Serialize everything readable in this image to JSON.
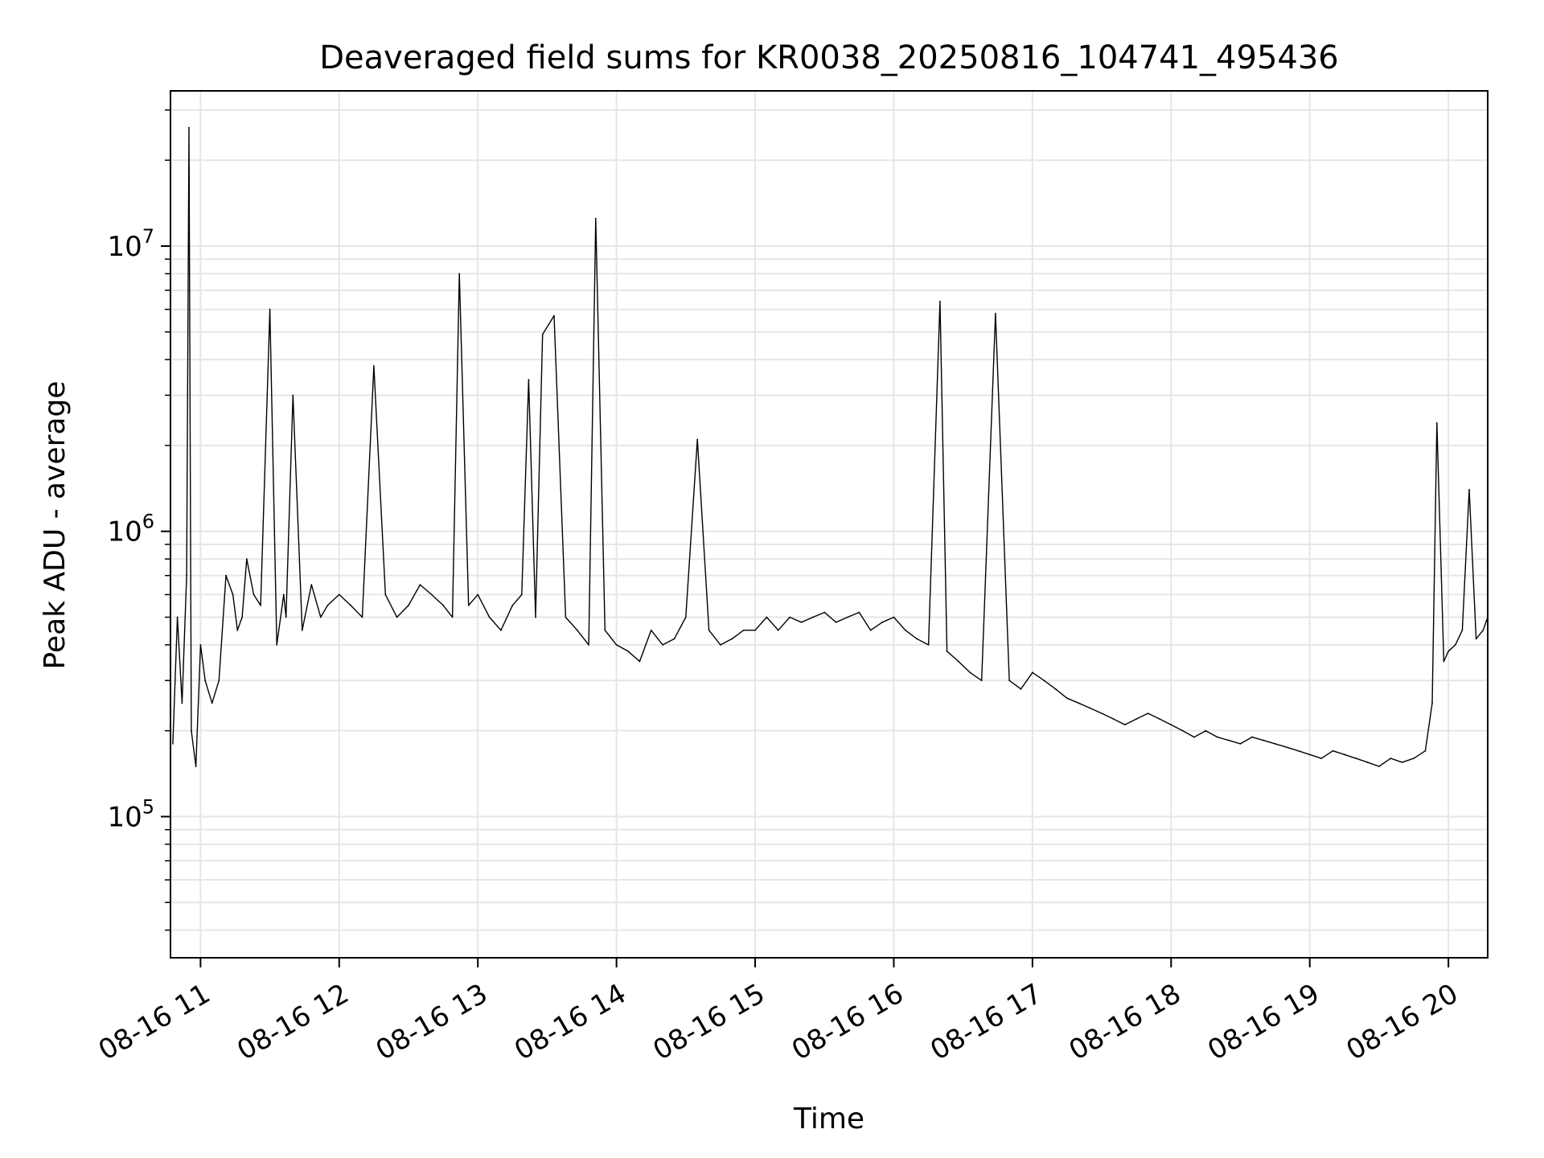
{
  "chart_data": {
    "type": "line",
    "title": "Deaveraged field sums for KR0038_20250816_104741_495436",
    "xlabel": "Time",
    "ylabel": "Peak ADU - average",
    "yscale": "log",
    "ylim": [
      32000,
      35000000
    ],
    "xlim": [
      "2025-08-16 10:47",
      "2025-08-16 20:17"
    ],
    "grid": true,
    "line_color": "#000000",
    "x_ticks": [
      {
        "value": "2025-08-16 11:00",
        "label": "08-16 11"
      },
      {
        "value": "2025-08-16 12:00",
        "label": "08-16 12"
      },
      {
        "value": "2025-08-16 13:00",
        "label": "08-16 13"
      },
      {
        "value": "2025-08-16 14:00",
        "label": "08-16 14"
      },
      {
        "value": "2025-08-16 15:00",
        "label": "08-16 15"
      },
      {
        "value": "2025-08-16 16:00",
        "label": "08-16 16"
      },
      {
        "value": "2025-08-16 17:00",
        "label": "08-16 17"
      },
      {
        "value": "2025-08-16 18:00",
        "label": "08-16 18"
      },
      {
        "value": "2025-08-16 19:00",
        "label": "08-16 19"
      },
      {
        "value": "2025-08-16 20:00",
        "label": "08-16 20"
      }
    ],
    "y_ticks": [
      {
        "value": 100000,
        "base": "10",
        "exp": "5"
      },
      {
        "value": 1000000,
        "base": "10",
        "exp": "6"
      },
      {
        "value": 10000000,
        "base": "10",
        "exp": "7"
      }
    ],
    "series": [
      {
        "x": [
          "2025-08-16 10:48",
          "2025-08-16 10:50",
          "2025-08-16 10:52",
          "2025-08-16 10:54",
          "2025-08-16 10:55",
          "2025-08-16 10:56",
          "2025-08-16 10:58",
          "2025-08-16 11:00",
          "2025-08-16 11:02",
          "2025-08-16 11:05",
          "2025-08-16 11:08",
          "2025-08-16 11:11",
          "2025-08-16 11:14",
          "2025-08-16 11:16",
          "2025-08-16 11:18",
          "2025-08-16 11:20",
          "2025-08-16 11:23",
          "2025-08-16 11:26",
          "2025-08-16 11:30",
          "2025-08-16 11:33",
          "2025-08-16 11:36",
          "2025-08-16 11:37",
          "2025-08-16 11:40",
          "2025-08-16 11:44",
          "2025-08-16 11:48",
          "2025-08-16 11:52",
          "2025-08-16 11:55",
          "2025-08-16 12:00",
          "2025-08-16 12:05",
          "2025-08-16 12:10",
          "2025-08-16 12:15",
          "2025-08-16 12:20",
          "2025-08-16 12:25",
          "2025-08-16 12:30",
          "2025-08-16 12:35",
          "2025-08-16 12:40",
          "2025-08-16 12:45",
          "2025-08-16 12:49",
          "2025-08-16 12:52",
          "2025-08-16 12:56",
          "2025-08-16 13:00",
          "2025-08-16 13:05",
          "2025-08-16 13:10",
          "2025-08-16 13:15",
          "2025-08-16 13:19",
          "2025-08-16 13:22",
          "2025-08-16 13:25",
          "2025-08-16 13:28",
          "2025-08-16 13:33",
          "2025-08-16 13:38",
          "2025-08-16 13:43",
          "2025-08-16 13:48",
          "2025-08-16 13:51",
          "2025-08-16 13:55",
          "2025-08-16 14:00",
          "2025-08-16 14:05",
          "2025-08-16 14:10",
          "2025-08-16 14:15",
          "2025-08-16 14:20",
          "2025-08-16 14:25",
          "2025-08-16 14:30",
          "2025-08-16 14:35",
          "2025-08-16 14:40",
          "2025-08-16 14:45",
          "2025-08-16 14:50",
          "2025-08-16 14:55",
          "2025-08-16 15:00",
          "2025-08-16 15:05",
          "2025-08-16 15:10",
          "2025-08-16 15:15",
          "2025-08-16 15:20",
          "2025-08-16 15:25",
          "2025-08-16 15:30",
          "2025-08-16 15:35",
          "2025-08-16 15:40",
          "2025-08-16 15:45",
          "2025-08-16 15:50",
          "2025-08-16 15:55",
          "2025-08-16 16:00",
          "2025-08-16 16:05",
          "2025-08-16 16:10",
          "2025-08-16 16:15",
          "2025-08-16 16:20",
          "2025-08-16 16:23",
          "2025-08-16 16:28",
          "2025-08-16 16:33",
          "2025-08-16 16:38",
          "2025-08-16 16:44",
          "2025-08-16 16:50",
          "2025-08-16 16:55",
          "2025-08-16 17:00",
          "2025-08-16 17:05",
          "2025-08-16 17:10",
          "2025-08-16 17:15",
          "2025-08-16 17:20",
          "2025-08-16 17:25",
          "2025-08-16 17:30",
          "2025-08-16 17:35",
          "2025-08-16 17:40",
          "2025-08-16 17:45",
          "2025-08-16 17:50",
          "2025-08-16 17:55",
          "2025-08-16 18:00",
          "2025-08-16 18:05",
          "2025-08-16 18:10",
          "2025-08-16 18:15",
          "2025-08-16 18:20",
          "2025-08-16 18:25",
          "2025-08-16 18:30",
          "2025-08-16 18:35",
          "2025-08-16 18:40",
          "2025-08-16 18:45",
          "2025-08-16 18:50",
          "2025-08-16 18:55",
          "2025-08-16 19:00",
          "2025-08-16 19:05",
          "2025-08-16 19:10",
          "2025-08-16 19:15",
          "2025-08-16 19:20",
          "2025-08-16 19:25",
          "2025-08-16 19:30",
          "2025-08-16 19:35",
          "2025-08-16 19:40",
          "2025-08-16 19:45",
          "2025-08-16 19:50",
          "2025-08-16 19:53",
          "2025-08-16 19:55",
          "2025-08-16 19:58",
          "2025-08-16 20:00",
          "2025-08-16 20:03",
          "2025-08-16 20:06",
          "2025-08-16 20:09",
          "2025-08-16 20:12",
          "2025-08-16 20:15",
          "2025-08-16 20:17"
        ],
        "values": [
          180000,
          500000,
          250000,
          700000,
          26000000,
          200000,
          150000,
          400000,
          300000,
          250000,
          300000,
          700000,
          600000,
          450000,
          500000,
          800000,
          600000,
          550000,
          6000000,
          400000,
          600000,
          500000,
          3000000,
          450000,
          650000,
          500000,
          550000,
          600000,
          550000,
          500000,
          3800000,
          600000,
          500000,
          550000,
          650000,
          600000,
          550000,
          500000,
          8000000,
          550000,
          600000,
          500000,
          450000,
          550000,
          600000,
          3400000,
          500000,
          4900000,
          5700000,
          500000,
          450000,
          400000,
          12500000,
          450000,
          400000,
          380000,
          350000,
          450000,
          400000,
          420000,
          500000,
          2100000,
          450000,
          400000,
          420000,
          450000,
          450000,
          500000,
          450000,
          500000,
          480000,
          500000,
          520000,
          480000,
          500000,
          520000,
          450000,
          480000,
          500000,
          450000,
          420000,
          400000,
          6400000,
          380000,
          350000,
          320000,
          300000,
          5800000,
          300000,
          280000,
          320000,
          300000,
          280000,
          260000,
          250000,
          240000,
          230000,
          220000,
          210000,
          220000,
          230000,
          220000,
          210000,
          200000,
          190000,
          200000,
          190000,
          185000,
          180000,
          190000,
          185000,
          180000,
          175000,
          170000,
          165000,
          160000,
          170000,
          165000,
          160000,
          155000,
          150000,
          160000,
          155000,
          160000,
          170000,
          250000,
          2400000,
          350000,
          380000,
          400000,
          450000,
          1400000,
          420000,
          450000,
          500000
        ]
      }
    ]
  }
}
